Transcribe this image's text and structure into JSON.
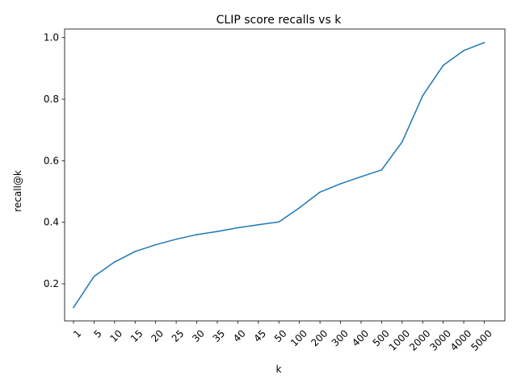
{
  "chart_data": {
    "type": "line",
    "title": "CLIP score recalls vs k",
    "xlabel": "k",
    "ylabel": "recall@k",
    "categories": [
      "1",
      "5",
      "10",
      "15",
      "20",
      "25",
      "30",
      "35",
      "40",
      "45",
      "50",
      "100",
      "200",
      "300",
      "400",
      "500",
      "1000",
      "2000",
      "3000",
      "4000",
      "5000"
    ],
    "series": [
      {
        "values": [
          0.123,
          0.224,
          0.271,
          0.305,
          0.327,
          0.345,
          0.36,
          0.37,
          0.382,
          0.392,
          0.401,
          0.447,
          0.498,
          0.525,
          0.548,
          0.57,
          0.661,
          0.811,
          0.91,
          0.958,
          0.984
        ],
        "color": "#1f77b4"
      }
    ],
    "yticks": [
      "0.2",
      "0.4",
      "0.6",
      "0.8",
      "1.0"
    ],
    "ylim": [
      0.0795,
      1.028
    ],
    "grid": false
  }
}
